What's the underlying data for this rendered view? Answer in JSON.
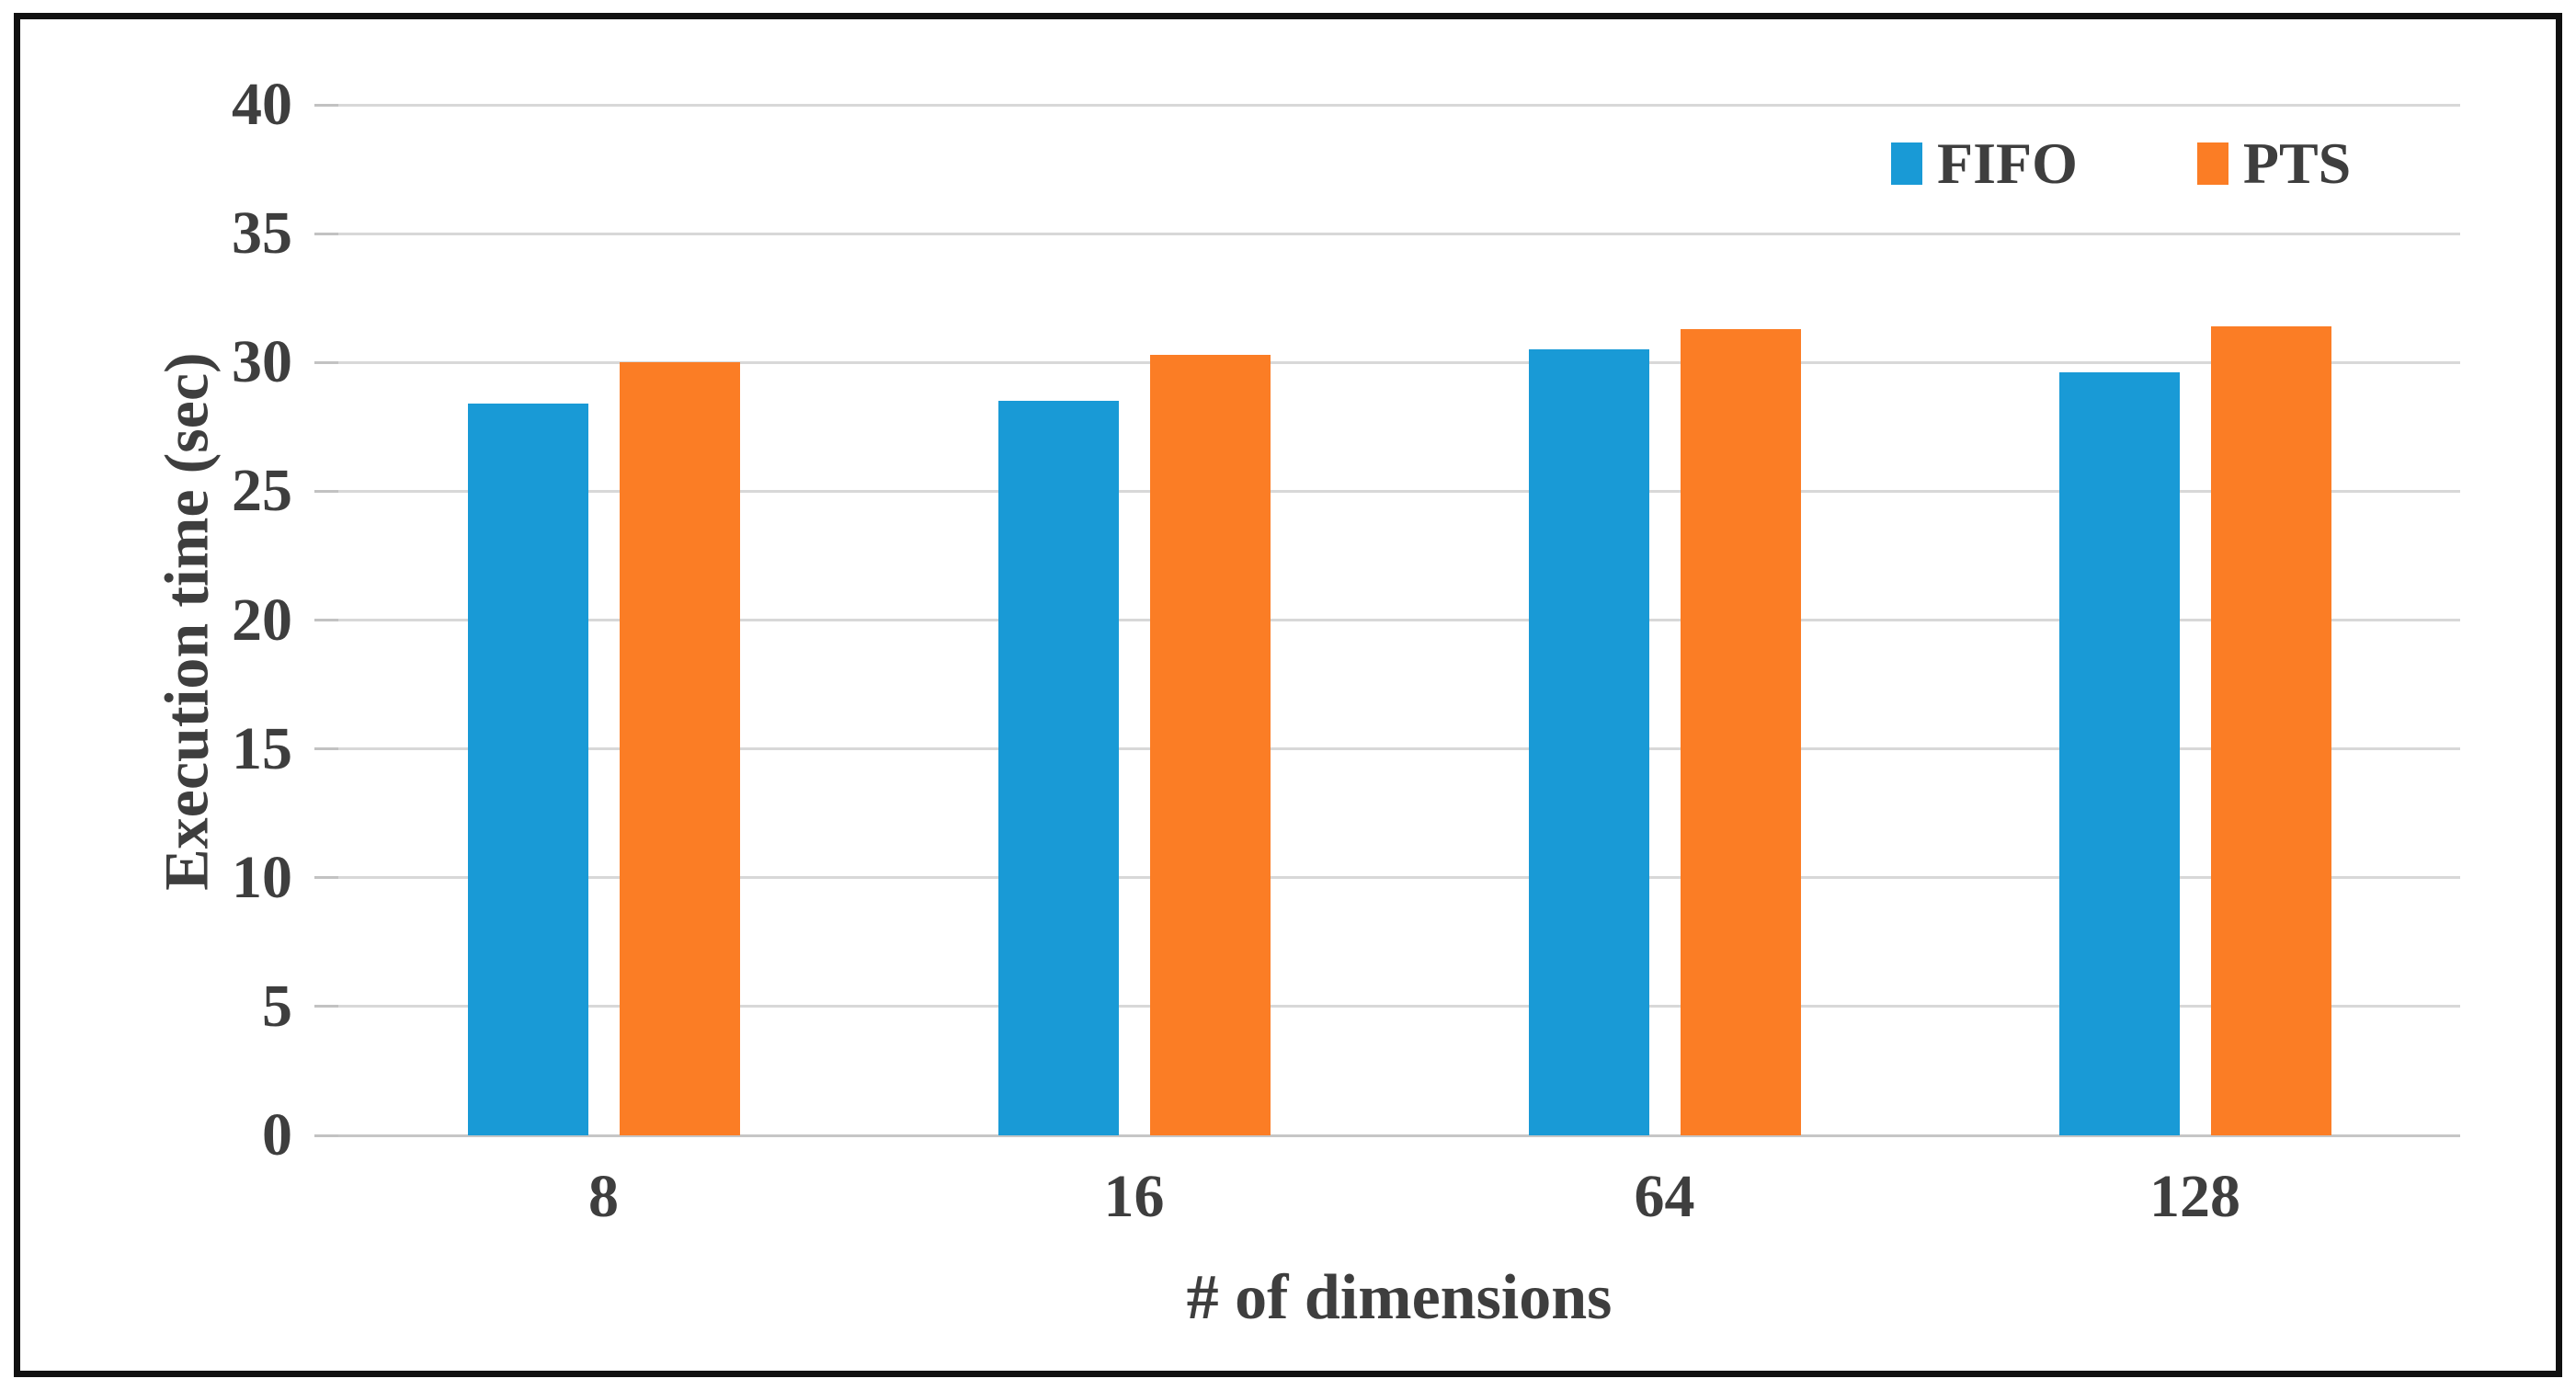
{
  "chart_data": {
    "type": "bar",
    "categories": [
      "8",
      "16",
      "64",
      "128"
    ],
    "series": [
      {
        "name": "FIFO",
        "color": "#199ad6",
        "values": [
          28.4,
          28.5,
          30.5,
          29.6
        ]
      },
      {
        "name": "PTS",
        "color": "#fb7d25",
        "values": [
          30.0,
          30.3,
          31.3,
          31.4
        ]
      }
    ],
    "title": "",
    "xlabel": "# of dimensions",
    "ylabel": "Execution time (sec)",
    "ylim": [
      0,
      40
    ],
    "ytick_step": 5,
    "y_tick_labels": [
      "0",
      "5",
      "10",
      "15",
      "20",
      "25",
      "30",
      "35",
      "40"
    ],
    "grid": true,
    "legend_position": "top-right"
  },
  "style_colors": {
    "gridline": "#d8d8d8",
    "zero_line": "#c6c6c6",
    "tick": "#c2c2c2",
    "text": "#3e3e3e",
    "frame_border": "#111111",
    "background": "#ffffff"
  }
}
